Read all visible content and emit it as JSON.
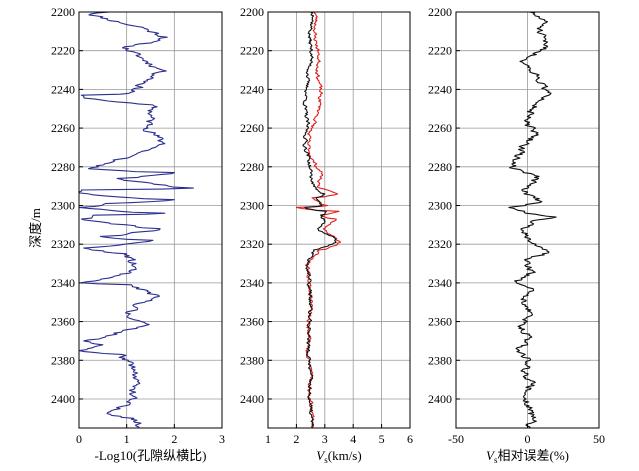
{
  "chart_data": {
    "type": "line",
    "ylabel": "深度/m",
    "ylim": [
      2200,
      2415
    ],
    "yticks": [
      2200,
      2220,
      2240,
      2260,
      2280,
      2300,
      2320,
      2340,
      2360,
      2380,
      2400
    ],
    "grid": true,
    "panels": [
      {
        "xlabel": "-Log10(孔隙纵横比)",
        "xlim": [
          0,
          3
        ],
        "xticks": [
          0,
          1,
          2,
          3
        ],
        "series": [
          {
            "color": "#2b2f8f",
            "style": "random",
            "seed": 11,
            "center": 1.25,
            "noise": 0.18,
            "smooth": 0.45,
            "overrides": [
              [
                2201,
                0.25
              ],
              [
                2208,
                1.35
              ],
              [
                2213,
                1.85
              ],
              [
                2218,
                0.95
              ],
              [
                2230,
                1.75
              ],
              [
                2242,
                1.05
              ],
              [
                2243,
                0.05
              ],
              [
                2244,
                0.1
              ],
              [
                2248,
                1.55
              ],
              [
                2260,
                1.45
              ],
              [
                2268,
                1.8
              ],
              [
                2281,
                0.2
              ],
              [
                2283,
                2.0
              ],
              [
                2286,
                0.8
              ],
              [
                2291,
                2.4
              ],
              [
                2292,
                0.05
              ],
              [
                2294,
                0.2
              ],
              [
                2297,
                2.0
              ],
              [
                2299,
                0.55
              ],
              [
                2301,
                0.0
              ],
              [
                2304,
                1.8
              ],
              [
                2305,
                0.3
              ],
              [
                2307,
                0.05
              ],
              [
                2310,
                1.0
              ],
              [
                2312,
                1.7
              ],
              [
                2316,
                0.45
              ],
              [
                2318,
                1.55
              ],
              [
                2322,
                0.1
              ],
              [
                2325,
                1.0
              ],
              [
                2333,
                1.2
              ],
              [
                2340,
                0.05
              ],
              [
                2341,
                1.1
              ],
              [
                2346,
                1.6
              ],
              [
                2355,
                1.0
              ],
              [
                2362,
                1.4
              ],
              [
                2370,
                0.1
              ],
              [
                2372,
                0.5
              ],
              [
                2375,
                0.0
              ],
              [
                2377,
                0.9
              ],
              [
                2384,
                1.1
              ],
              [
                2393,
                1.2
              ],
              [
                2401,
                1.05
              ],
              [
                2407,
                0.6
              ],
              [
                2410,
                1.15
              ],
              [
                2413,
                1.25
              ]
            ]
          }
        ]
      },
      {
        "xlabel": "Vs(km/s)",
        "xlim": [
          1,
          6
        ],
        "xticks": [
          1,
          2,
          3,
          4,
          5,
          6
        ],
        "series": [
          {
            "color": "#e02020",
            "style": "random",
            "seed": 23,
            "center": 2.55,
            "noise": 0.12,
            "smooth": 0.5,
            "overrides": [
              [
                2202,
                2.7
              ],
              [
                2212,
                2.65
              ],
              [
                2222,
                2.8
              ],
              [
                2232,
                2.75
              ],
              [
                2240,
                2.85
              ],
              [
                2250,
                2.8
              ],
              [
                2258,
                2.6
              ],
              [
                2262,
                2.45
              ],
              [
                2268,
                2.4
              ],
              [
                2276,
                2.55
              ],
              [
                2283,
                2.9
              ],
              [
                2290,
                2.75
              ],
              [
                2294,
                3.45
              ],
              [
                2296,
                2.55
              ],
              [
                2300,
                3.1
              ],
              [
                2301,
                2.0
              ],
              [
                2303,
                3.5
              ],
              [
                2305,
                2.9
              ],
              [
                2307,
                3.4
              ],
              [
                2312,
                2.95
              ],
              [
                2316,
                3.35
              ],
              [
                2319,
                3.55
              ],
              [
                2323,
                2.8
              ],
              [
                2330,
                2.4
              ],
              [
                2340,
                2.45
              ],
              [
                2350,
                2.55
              ],
              [
                2360,
                2.4
              ],
              [
                2368,
                2.5
              ],
              [
                2376,
                2.35
              ],
              [
                2386,
                2.55
              ],
              [
                2396,
                2.45
              ],
              [
                2405,
                2.55
              ],
              [
                2413,
                2.6
              ]
            ]
          },
          {
            "color": "#111111",
            "style": "random",
            "seed": 37,
            "center": 2.45,
            "noise": 0.12,
            "smooth": 0.5,
            "overrides": [
              [
                2202,
                2.6
              ],
              [
                2212,
                2.45
              ],
              [
                2222,
                2.55
              ],
              [
                2232,
                2.4
              ],
              [
                2240,
                2.35
              ],
              [
                2250,
                2.3
              ],
              [
                2258,
                2.4
              ],
              [
                2262,
                2.35
              ],
              [
                2268,
                2.3
              ],
              [
                2276,
                2.45
              ],
              [
                2283,
                2.5
              ],
              [
                2290,
                2.6
              ],
              [
                2294,
                3.0
              ],
              [
                2296,
                2.7
              ],
              [
                2300,
                2.9
              ],
              [
                2301,
                2.3
              ],
              [
                2303,
                3.05
              ],
              [
                2305,
                2.85
              ],
              [
                2307,
                3.0
              ],
              [
                2312,
                2.75
              ],
              [
                2316,
                3.3
              ],
              [
                2319,
                3.4
              ],
              [
                2323,
                2.6
              ],
              [
                2330,
                2.4
              ],
              [
                2340,
                2.45
              ],
              [
                2350,
                2.5
              ],
              [
                2360,
                2.45
              ],
              [
                2368,
                2.45
              ],
              [
                2376,
                2.4
              ],
              [
                2386,
                2.5
              ],
              [
                2396,
                2.45
              ],
              [
                2405,
                2.5
              ],
              [
                2413,
                2.55
              ]
            ]
          }
        ]
      },
      {
        "xlabel": "Vs相对误差(%)",
        "xlim": [
          -50,
          50
        ],
        "xticks": [
          -50,
          0,
          50
        ],
        "series": [
          {
            "color": "#111111",
            "style": "random",
            "seed": 51,
            "center": 0,
            "noise": 4.5,
            "smooth": 0.4,
            "overrides": [
              [
                2201,
                4
              ],
              [
                2204,
                12
              ],
              [
                2210,
                8
              ],
              [
                2218,
                14
              ],
              [
                2225,
                -3
              ],
              [
                2232,
                6
              ],
              [
                2243,
                15
              ],
              [
                2250,
                4
              ],
              [
                2256,
                -2
              ],
              [
                2263,
                6
              ],
              [
                2270,
                -4
              ],
              [
                2280,
                -11
              ],
              [
                2285,
                8
              ],
              [
                2292,
                -4
              ],
              [
                2298,
                10
              ],
              [
                2301,
                -13
              ],
              [
                2303,
                -2
              ],
              [
                2305,
                9
              ],
              [
                2306,
                20
              ],
              [
                2308,
                3
              ],
              [
                2313,
                -3
              ],
              [
                2320,
                6
              ],
              [
                2324,
                15
              ],
              [
                2328,
                -2
              ],
              [
                2334,
                4
              ],
              [
                2339,
                -9
              ],
              [
                2343,
                4
              ],
              [
                2348,
                -3
              ],
              [
                2355,
                2
              ],
              [
                2362,
                -5
              ],
              [
                2368,
                3
              ],
              [
                2374,
                -8
              ],
              [
                2380,
                2
              ],
              [
                2386,
                -2
              ],
              [
                2392,
                3
              ],
              [
                2398,
                -2
              ],
              [
                2405,
                2
              ],
              [
                2411,
                4
              ],
              [
                2414,
                0
              ]
            ]
          }
        ]
      }
    ]
  }
}
